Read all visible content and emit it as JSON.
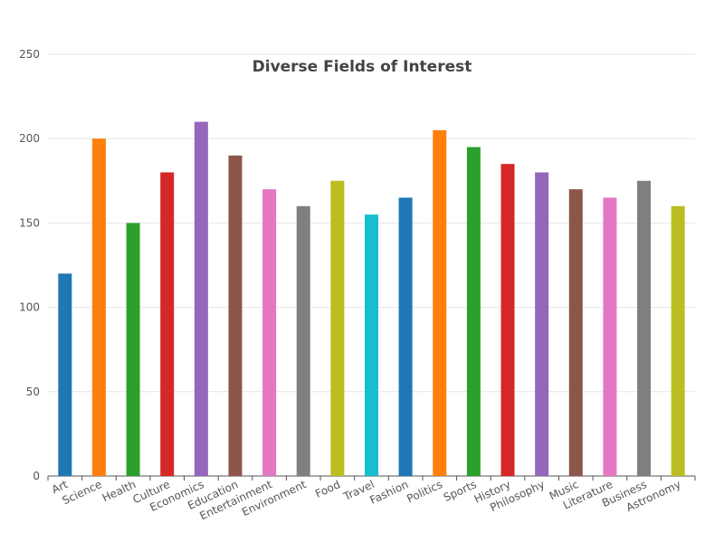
{
  "chart_data": {
    "type": "bar",
    "title": "Diverse Fields of Interest",
    "xlabel": "",
    "ylabel": "",
    "categories": [
      "Art",
      "Science",
      "Health",
      "Culture",
      "Economics",
      "Education",
      "Entertainment",
      "Environment",
      "Food",
      "Travel",
      "Fashion",
      "Politics",
      "Sports",
      "History",
      "Philosophy",
      "Music",
      "Literature",
      "Business",
      "Astronomy"
    ],
    "values": [
      120,
      200,
      150,
      180,
      210,
      190,
      170,
      160,
      175,
      155,
      165,
      205,
      195,
      185,
      180,
      170,
      165,
      175,
      160
    ],
    "colors": [
      "#1f77b4",
      "#ff7f0e",
      "#2ca02c",
      "#d62728",
      "#9467bd",
      "#8c564b",
      "#e377c2",
      "#7f7f7f",
      "#bcbd22",
      "#17becf",
      "#1f77b4",
      "#ff7f0e",
      "#2ca02c",
      "#d62728",
      "#9467bd",
      "#8c564b",
      "#e377c2",
      "#7f7f7f",
      "#bcbd22"
    ],
    "ylim": [
      0,
      250
    ],
    "yticks": [
      0,
      50,
      100,
      150,
      200,
      250
    ],
    "grid": true,
    "legend": "none"
  }
}
